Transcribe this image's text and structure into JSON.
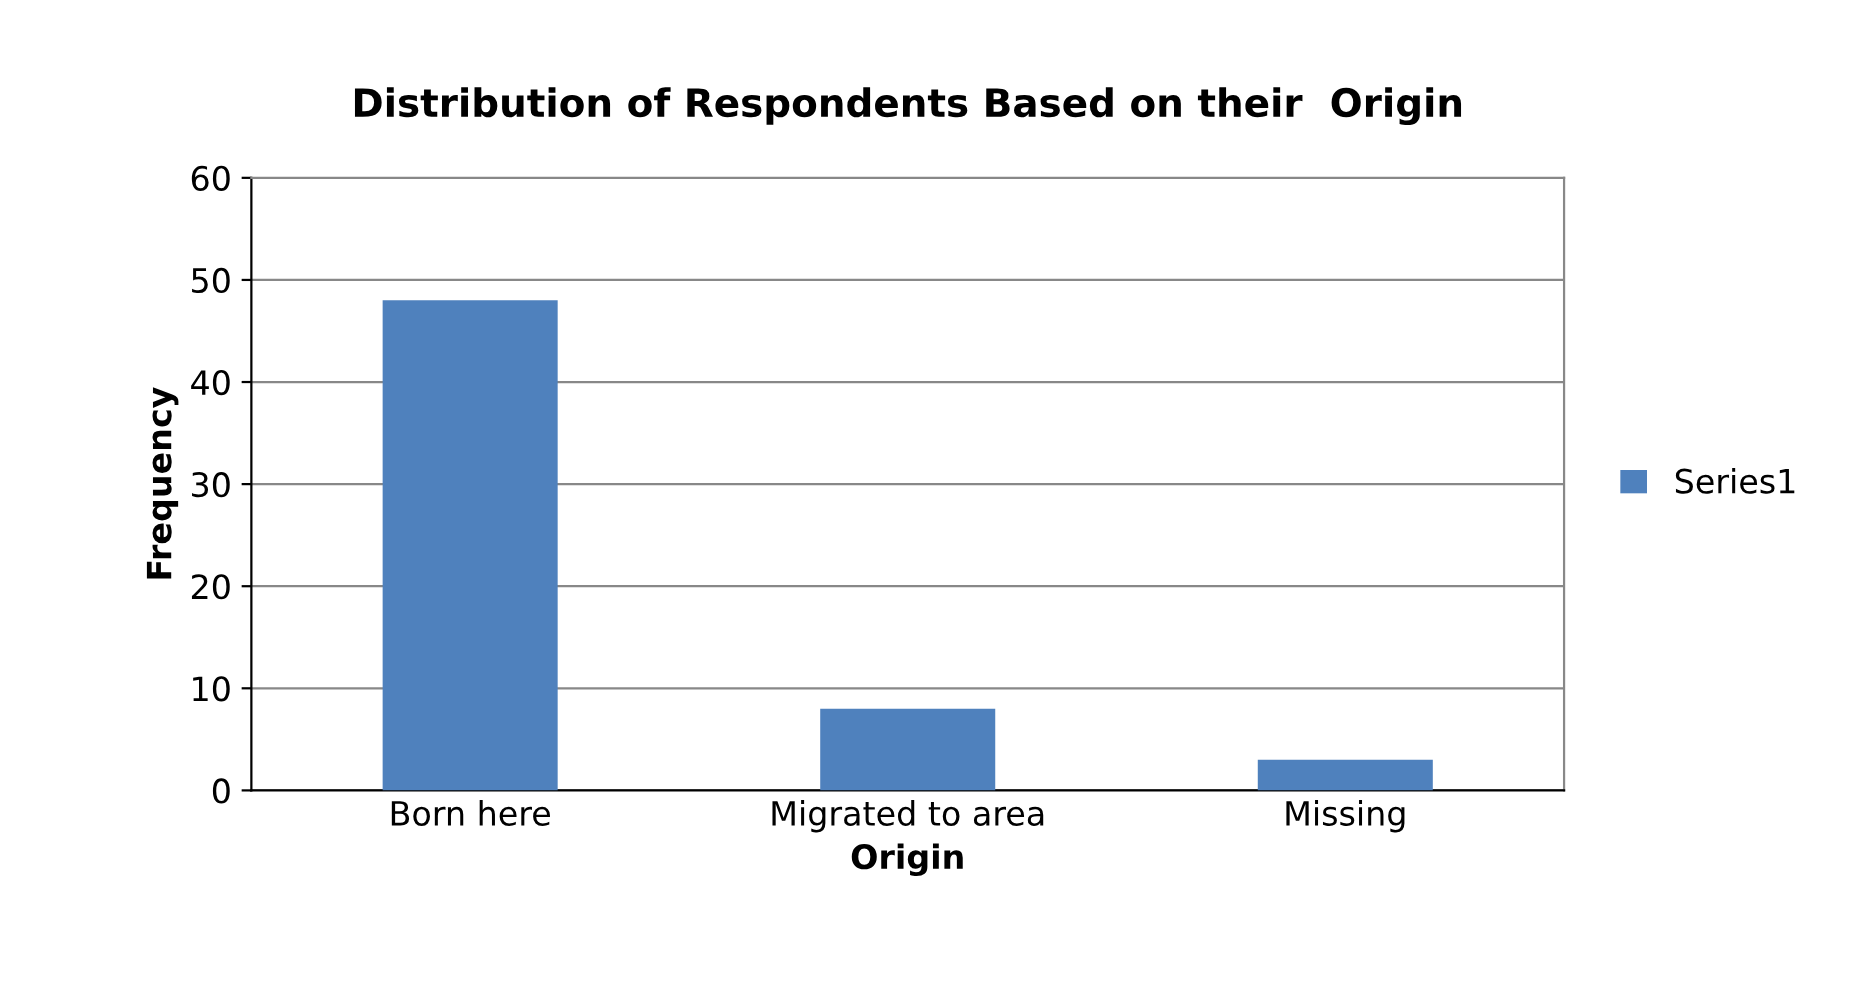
{
  "chart_data": {
    "type": "bar",
    "title": "Distribution of Respondents Based on their  Origin",
    "xlabel": "Origin",
    "ylabel": "Frequency",
    "categories": [
      "Born here",
      "Migrated to area",
      "Missing"
    ],
    "series": [
      {
        "name": "Series1",
        "color": "#4f81bd",
        "values": [
          48,
          8,
          3
        ]
      }
    ],
    "ylim": [
      0,
      60
    ],
    "yticks": [
      0,
      10,
      20,
      30,
      40,
      50,
      60
    ],
    "grid": "y",
    "legend": "right"
  }
}
